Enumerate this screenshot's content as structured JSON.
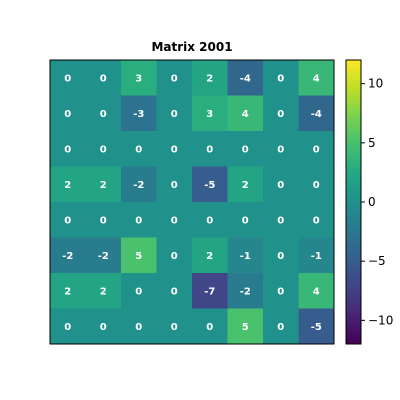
{
  "chart_data": {
    "type": "heatmap",
    "title": "Matrix 2001",
    "matrix": [
      [
        0,
        0,
        3,
        0,
        2,
        -4,
        0,
        4
      ],
      [
        0,
        0,
        -3,
        0,
        3,
        4,
        0,
        -4
      ],
      [
        0,
        0,
        0,
        0,
        0,
        0,
        0,
        0
      ],
      [
        2,
        2,
        -2,
        0,
        -5,
        2,
        0,
        0
      ],
      [
        0,
        0,
        0,
        0,
        0,
        0,
        0,
        0
      ],
      [
        -2,
        -2,
        5,
        0,
        2,
        -1,
        0,
        -1
      ],
      [
        2,
        2,
        0,
        0,
        -7,
        -2,
        0,
        4
      ],
      [
        0,
        0,
        0,
        0,
        0,
        5,
        0,
        -5
      ]
    ],
    "colorbar": {
      "colormap": "viridis",
      "range": [
        -12,
        12
      ],
      "ticks": [
        -10,
        -5,
        0,
        5,
        10
      ],
      "tick_labels": [
        "−10",
        "−5",
        "0",
        "5",
        "10"
      ]
    },
    "grid": false,
    "xlabel": "",
    "ylabel": ""
  }
}
